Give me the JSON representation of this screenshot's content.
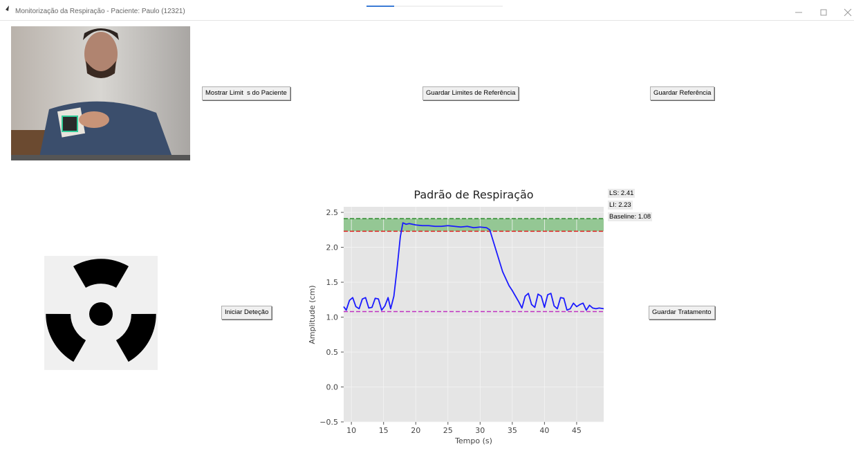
{
  "window": {
    "title": "Monitorização da Respiração - Paciente: Paulo (12321)"
  },
  "buttons": [
    "Mostrar Limit  s do Paciente",
    "Guardar Limites de Referência",
    "Guardar Referência",
    "Iniciar Deteção",
    "Guardar Tratamento"
  ],
  "limits_panel": [
    "LS: 2.41",
    "LI: 2.23",
    "Baseline: 1.08"
  ],
  "chart_data": {
    "type": "line",
    "title": "Padrão de Respiração",
    "x_label": "Tempo (s)",
    "y_label": "Amplitude (cm)",
    "xlim": [
      8.8,
      49.2
    ],
    "ylim": [
      -0.5,
      2.58
    ],
    "xticks": [
      10,
      15,
      20,
      25,
      30,
      35,
      40,
      45
    ],
    "yticks": [
      {
        "value": -0.5,
        "label": "−0.5"
      },
      {
        "value": 0,
        "label": "0.0"
      },
      0.5,
      {
        "value": 1,
        "label": "1.0"
      },
      1.5,
      {
        "value": 2,
        "label": "2.0"
      },
      2.5
    ],
    "grid": true,
    "x": [
      8.8,
      9.2,
      9.7,
      10.2,
      10.7,
      11.2,
      11.7,
      12.2,
      12.7,
      13.2,
      13.7,
      14.2,
      14.7,
      15.2,
      15.7,
      16.1,
      16.6,
      17.1,
      17.6,
      18.0,
      18.5,
      19,
      20,
      21,
      22,
      23,
      24,
      25,
      26,
      27,
      28,
      29,
      30,
      31,
      31.5,
      32,
      32.5,
      33,
      33.5,
      34,
      34.5,
      35,
      35.5,
      36,
      36.5,
      37,
      37.5,
      38,
      38.5,
      39,
      39.5,
      40,
      40.5,
      41,
      41.5,
      42,
      42.5,
      43,
      43.5,
      44,
      44.5,
      45,
      45.5,
      46,
      46.5,
      47,
      47.5,
      48,
      48.5,
      49.2
    ],
    "series": [
      {
        "color": "#1a1aff",
        "values": [
          1.15,
          1.1,
          1.24,
          1.28,
          1.15,
          1.12,
          1.26,
          1.28,
          1.13,
          1.14,
          1.27,
          1.26,
          1.1,
          1.16,
          1.28,
          1.12,
          1.3,
          1.7,
          2.15,
          2.35,
          2.33,
          2.34,
          2.32,
          2.31,
          2.31,
          2.3,
          2.3,
          2.31,
          2.3,
          2.29,
          2.3,
          2.28,
          2.29,
          2.28,
          2.25,
          2.1,
          1.95,
          1.8,
          1.65,
          1.55,
          1.45,
          1.38,
          1.3,
          1.22,
          1.13,
          1.3,
          1.34,
          1.18,
          1.14,
          1.33,
          1.3,
          1.14,
          1.32,
          1.34,
          1.16,
          1.12,
          1.28,
          1.27,
          1.1,
          1.12,
          1.2,
          1.15,
          1.18,
          1.2,
          1.1,
          1.17,
          1.13,
          1.12,
          1.13,
          1.12
        ]
      }
    ],
    "hlines": [
      {
        "value": 2.41,
        "color": "#2a8a2a"
      },
      {
        "value": 2.23,
        "color": "#e02020"
      },
      {
        "value": 1.08,
        "color": "#c030c0"
      }
    ],
    "band_color": "#94c794"
  }
}
